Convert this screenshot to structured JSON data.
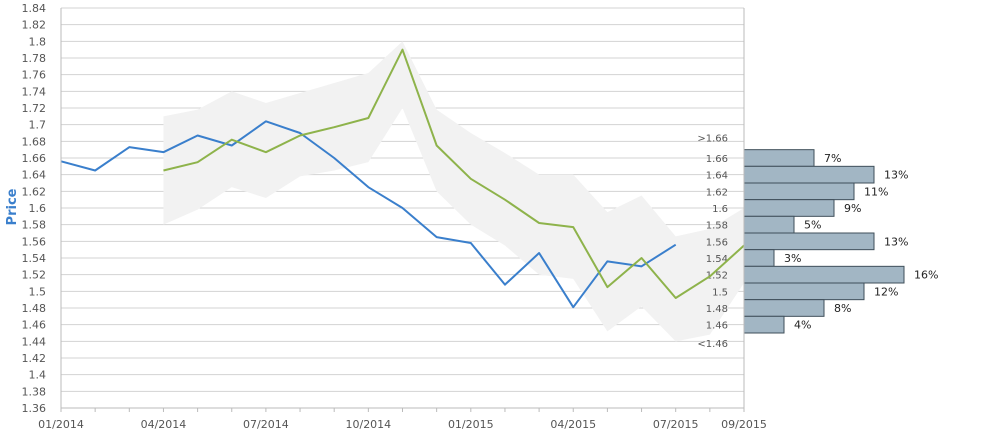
{
  "chart_data": {
    "type": "line",
    "ylabel": "Price",
    "ylim": [
      1.36,
      1.84
    ],
    "yticks": [
      "1.36",
      "1.38",
      "1.4",
      "1.42",
      "1.44",
      "1.46",
      "1.48",
      "1.5",
      "1.52",
      "1.54",
      "1.56",
      "1.58",
      "1.6",
      "1.62",
      "1.64",
      "1.66",
      "1.68",
      "1.7",
      "1.72",
      "1.74",
      "1.76",
      "1.78",
      "1.8",
      "1.82",
      "1.84"
    ],
    "xlim": [
      "2014-01",
      "2015-09"
    ],
    "xticks": [
      "01/2014",
      "04/2014",
      "07/2014",
      "10/2014",
      "01/2015",
      "04/2015",
      "07/2015",
      "09/2015"
    ],
    "series": [
      {
        "color": "#3a7fcc",
        "x": [
          "2014-01",
          "2014-02",
          "2014-03",
          "2014-04",
          "2014-05",
          "2014-06",
          "2014-07",
          "2014-08",
          "2014-09",
          "2014-10",
          "2014-11",
          "2014-12",
          "2015-01",
          "2015-02",
          "2015-03",
          "2015-04",
          "2015-05",
          "2015-06",
          "2015-07"
        ],
        "y": [
          1.656,
          1.645,
          1.673,
          1.667,
          1.687,
          1.675,
          1.704,
          1.69,
          1.66,
          1.625,
          1.6,
          1.565,
          1.558,
          1.508,
          1.546,
          1.481,
          1.536,
          1.53,
          1.556
        ]
      },
      {
        "color": "#8eb34b",
        "x": [
          "2014-04",
          "2014-05",
          "2014-06",
          "2014-07",
          "2014-08",
          "2014-09",
          "2014-10",
          "2014-11",
          "2014-12",
          "2015-01",
          "2015-02",
          "2015-03",
          "2015-04",
          "2015-05",
          "2015-06",
          "2015-07",
          "2015-08",
          "2015-09"
        ],
        "y": [
          1.645,
          1.655,
          1.682,
          1.667,
          1.687,
          1.697,
          1.708,
          1.79,
          1.675,
          1.635,
          1.61,
          1.582,
          1.577,
          1.505,
          1.54,
          1.492,
          1.518,
          1.555
        ]
      }
    ],
    "band": {
      "color": "#f2f2f2",
      "x": [
        "2014-04",
        "2014-05",
        "2014-06",
        "2014-07",
        "2014-08",
        "2014-09",
        "2014-10",
        "2014-11",
        "2014-12",
        "2015-01",
        "2015-02",
        "2015-03",
        "2015-04",
        "2015-05",
        "2015-06",
        "2015-07",
        "2015-08",
        "2015-09"
      ],
      "upper": [
        1.71,
        1.718,
        1.74,
        1.726,
        1.738,
        1.75,
        1.762,
        1.8,
        1.718,
        1.69,
        1.666,
        1.64,
        1.64,
        1.595,
        1.615,
        1.566,
        1.575,
        1.6
      ],
      "lower": [
        1.58,
        1.598,
        1.625,
        1.612,
        1.638,
        1.645,
        1.655,
        1.72,
        1.62,
        1.58,
        1.555,
        1.52,
        1.515,
        1.452,
        1.482,
        1.44,
        1.448,
        1.51
      ]
    },
    "histogram": {
      "color": "#a2b6c4",
      "bins": [
        {
          "label": "1.66",
          "percent": 7,
          "percent_label": "7%"
        },
        {
          "label": "1.64",
          "percent": 13,
          "percent_label": "13%"
        },
        {
          "label": "1.62",
          "percent": 11,
          "percent_label": "11%"
        },
        {
          "label": "1.6",
          "percent": 9,
          "percent_label": "9%"
        },
        {
          "label": "1.58",
          "percent": 5,
          "percent_label": "5%"
        },
        {
          "label": "1.56",
          "percent": 13,
          "percent_label": "13%"
        },
        {
          "label": "1.54",
          "percent": 3,
          "percent_label": "3%"
        },
        {
          "label": "1.52",
          "percent": 16,
          "percent_label": "16%"
        },
        {
          "label": "1.5",
          "percent": 12,
          "percent_label": "12%"
        },
        {
          "label": "1.48",
          "percent": 8,
          "percent_label": "8%"
        },
        {
          "label": "1.46",
          "percent": 4,
          "percent_label": "4%"
        }
      ],
      "top_label": ">1.66",
      "bottom_label": "<1.46"
    },
    "grid": true
  }
}
